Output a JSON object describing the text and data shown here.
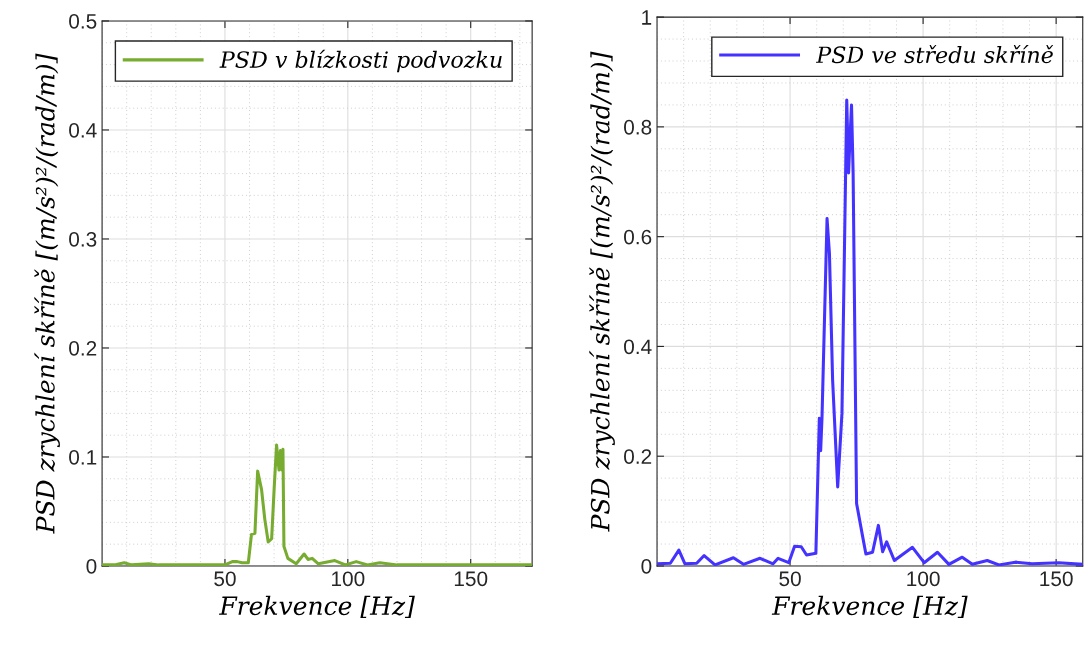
{
  "chart_data": [
    {
      "type": "line",
      "xlabel": "Frekvence [Hz]",
      "ylabel": "PSD zrychlení skříně [(m/s²)²/(rad/m)]",
      "xlim": [
        0,
        175
      ],
      "xticks": [
        50,
        100,
        150
      ],
      "ylim": [
        0,
        0.5
      ],
      "yticks": [
        0,
        0.1,
        0.2,
        0.3,
        0.4,
        0.5
      ],
      "grid": true,
      "legend": "top right",
      "line_style": "solid",
      "marker": "none",
      "series": [
        {
          "name": "PSD v blízkosti podvozku",
          "color": "#77ac30",
          "x": [
            0,
            5,
            9,
            12,
            19,
            23,
            30,
            40,
            50,
            53,
            55,
            57,
            59.5,
            60.8,
            62.2,
            63.3,
            64.9,
            66.2,
            67.6,
            69,
            70,
            71,
            72,
            72.6,
            73.2,
            73.6,
            74,
            75.6,
            79,
            82.2,
            83.8,
            85.5,
            88,
            94.7,
            99,
            103.4,
            108,
            113,
            120,
            130,
            140,
            150,
            160,
            175
          ],
          "values": [
            0.001,
            0.001,
            0.003,
            0.001,
            0.002,
            0.001,
            0.001,
            0.001,
            0.001,
            0.004,
            0.004,
            0.003,
            0.003,
            0.029,
            0.03,
            0.087,
            0.07,
            0.043,
            0.022,
            0.025,
            0.07,
            0.111,
            0.088,
            0.106,
            0.088,
            0.107,
            0.018,
            0.007,
            0.002,
            0.011,
            0.006,
            0.007,
            0.002,
            0.005,
            0.001,
            0.004,
            0.001,
            0.003,
            0.001,
            0.001,
            0.001,
            0.001,
            0.001,
            0.001
          ]
        }
      ]
    },
    {
      "type": "line",
      "xlabel": "Frekvence [Hz]",
      "ylabel": "PSD zrychlení skříně [(m/s²)²/(rad/m)]",
      "xlim": [
        0,
        160
      ],
      "xticks": [
        50,
        100,
        150
      ],
      "ylim": [
        0,
        1
      ],
      "yticks": [
        0,
        0.2,
        0.4,
        0.6,
        0.8,
        1
      ],
      "grid": true,
      "legend": "top right",
      "line_style": "solid",
      "marker": "none",
      "series": [
        {
          "name": "PSD ve středu skříně",
          "color": "#4433ff",
          "x": [
            0,
            5,
            8.2,
            10.5,
            14.9,
            17.7,
            21.8,
            28.7,
            32.5,
            38.7,
            43.6,
            45.5,
            49.5,
            51.7,
            54.2,
            56.2,
            59.7,
            61,
            61.5,
            62,
            63.9,
            64.8,
            66,
            67.9,
            69.5,
            71.3,
            72,
            72.5,
            73.1,
            73.7,
            75,
            77.3,
            78.5,
            81,
            83.2,
            84.8,
            86.3,
            89.2,
            96,
            100.4,
            105.4,
            109.7,
            114.7,
            118.5,
            124.1,
            128.5,
            134.7,
            141,
            151,
            160
          ],
          "values": [
            0.004,
            0.005,
            0.029,
            0.004,
            0.005,
            0.019,
            0.002,
            0.015,
            0.003,
            0.014,
            0.004,
            0.014,
            0.006,
            0.036,
            0.035,
            0.02,
            0.023,
            0.269,
            0.21,
            0.27,
            0.633,
            0.569,
            0.338,
            0.144,
            0.278,
            0.849,
            0.716,
            0.777,
            0.84,
            0.716,
            0.114,
            0.053,
            0.022,
            0.025,
            0.074,
            0.026,
            0.044,
            0.01,
            0.034,
            0.006,
            0.025,
            0.003,
            0.016,
            0.003,
            0.01,
            0.002,
            0.007,
            0.004,
            0.006,
            0.003
          ]
        }
      ]
    }
  ]
}
